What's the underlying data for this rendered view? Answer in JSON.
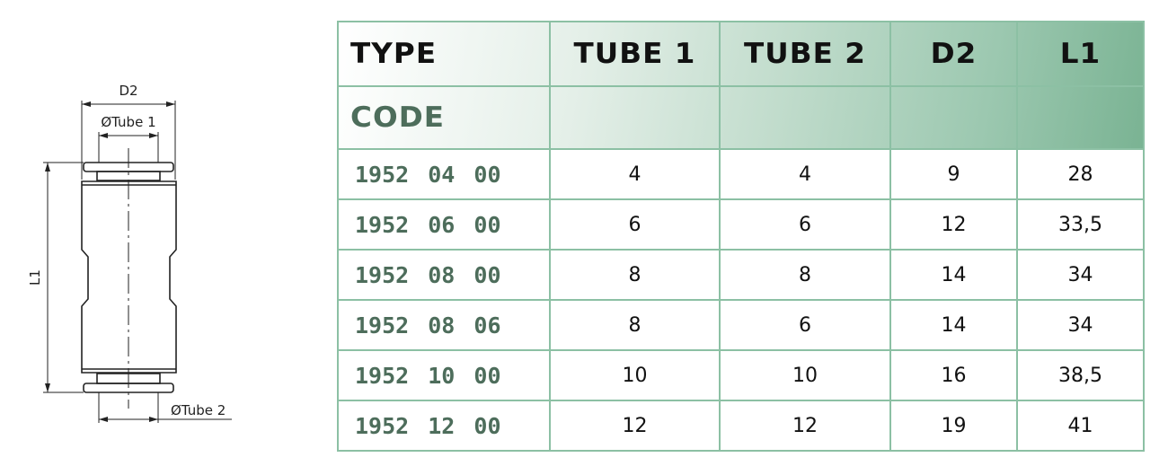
{
  "drawing": {
    "labels": {
      "d2": "D2",
      "tube1": "ØTube 1",
      "tube2": "ØTube 2",
      "l1": "L1"
    }
  },
  "table": {
    "headers": {
      "type": "TYPE",
      "tube1": "TUBE 1",
      "tube2": "TUBE 2",
      "d2": "D2",
      "l1": "L1"
    },
    "code_label": "CODE",
    "rows": [
      {
        "code": "1952 04 00",
        "tube1": "4",
        "tube2": "4",
        "d2": "9",
        "l1": "28"
      },
      {
        "code": "1952 06 00",
        "tube1": "6",
        "tube2": "6",
        "d2": "12",
        "l1": "33,5"
      },
      {
        "code": "1952 08 00",
        "tube1": "8",
        "tube2": "8",
        "d2": "14",
        "l1": "34"
      },
      {
        "code": "1952 08 06",
        "tube1": "8",
        "tube2": "6",
        "d2": "14",
        "l1": "34"
      },
      {
        "code": "1952 10 00",
        "tube1": "10",
        "tube2": "10",
        "d2": "16",
        "l1": "38,5"
      },
      {
        "code": "1952 12 00",
        "tube1": "12",
        "tube2": "12",
        "d2": "19",
        "l1": "41"
      }
    ],
    "colors": {
      "border": "#8cc0a4",
      "code_text": "#4d6d5b",
      "header_gradient_end": "#7ab393"
    }
  }
}
